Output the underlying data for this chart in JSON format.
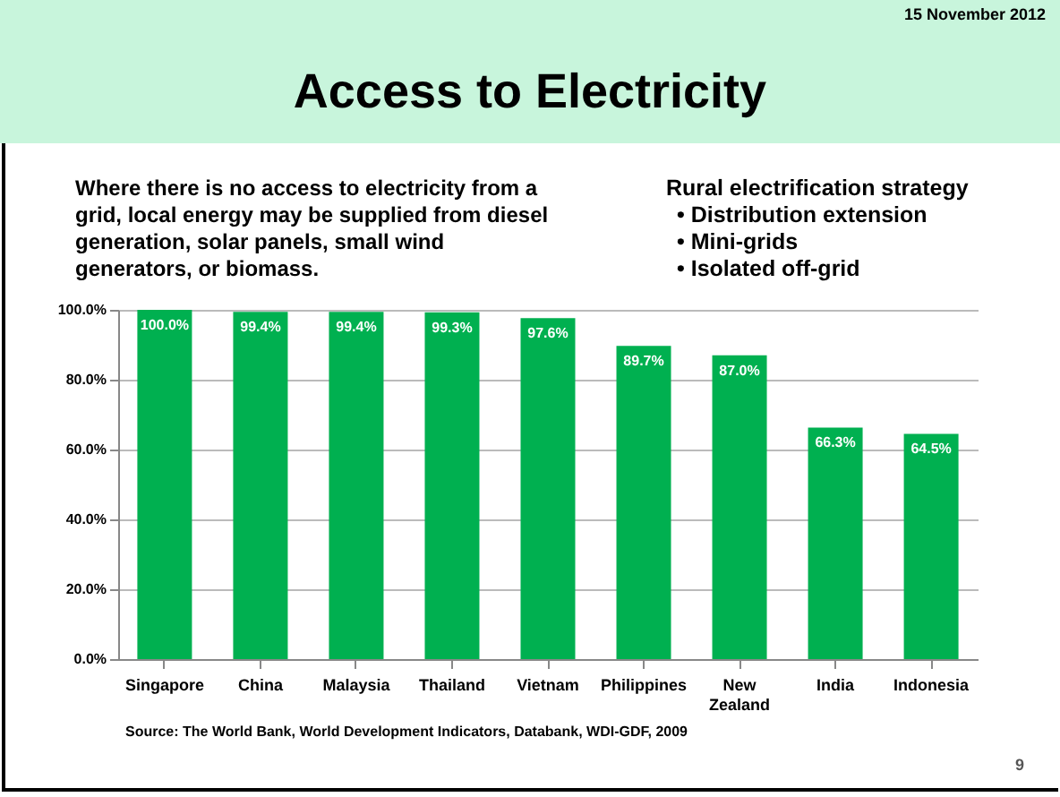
{
  "chart_data": {
    "type": "bar",
    "title": "Access to Electricity",
    "annotations": [
      "15 November 2012",
      "Where there is no access to electricity from a grid, local energy may be supplied from diesel generation, solar panels, small wind generators, or biomass.",
      "Rural electrification strategy",
      "• Distribution extension",
      "• Mini-grids",
      "• Isolated off-grid",
      "Source: The World Bank, World Development Indicators, Databank, WDI-GDF, 2009",
      "9"
    ],
    "categories": [
      "Singapore",
      "China",
      "Malaysia",
      "Thailand",
      "Vietnam",
      "Philippines",
      "New Zealand",
      "India",
      "Indonesia"
    ],
    "values": [
      100.0,
      99.4,
      99.4,
      99.3,
      97.6,
      89.7,
      87.0,
      66.3,
      64.5
    ],
    "value_labels": [
      "100.0%",
      "99.4%",
      "99.4%",
      "99.3%",
      "97.6%",
      "89.7%",
      "87.0%",
      "66.3%",
      "64.5%"
    ],
    "color": "#00b050",
    "ylim": [
      0,
      100
    ],
    "yticks": [
      {
        "value": 0,
        "label": "0.0%"
      },
      {
        "value": 20,
        "label": "20.0%"
      },
      {
        "value": 40,
        "label": "40.0%"
      },
      {
        "value": 60,
        "label": "60.0%"
      },
      {
        "value": 80,
        "label": "80.0%"
      },
      {
        "value": 100,
        "label": "100.0%"
      }
    ],
    "grid": "y"
  }
}
